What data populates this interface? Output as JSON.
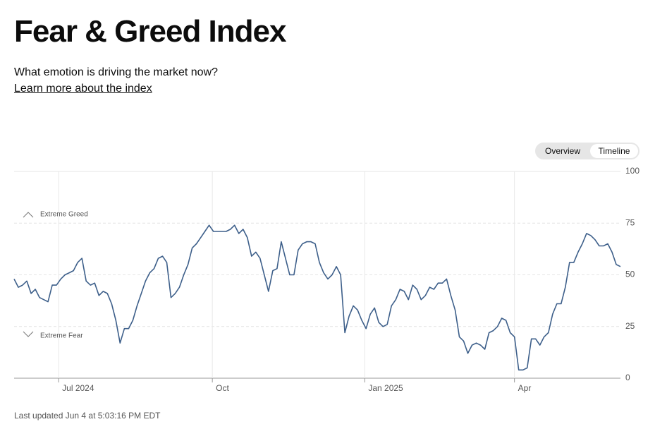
{
  "header": {
    "title": "Fear & Greed Index",
    "subtitle": "What emotion is driving the market now?",
    "link": "Learn more about the index"
  },
  "toggle": [
    "Overview",
    "Timeline"
  ],
  "footer": "Last updated Jun 4 at 5:03:16 PM EDT",
  "chart_data": {
    "type": "line",
    "color": "#3d5f8a",
    "annotations": [
      "Extreme Greed",
      "Extreme Fear"
    ],
    "values": [
      48,
      44,
      45,
      47,
      41,
      43,
      39,
      38,
      37,
      45,
      45,
      48,
      50,
      51,
      52,
      56,
      58,
      47,
      45,
      46,
      40,
      42,
      41,
      36,
      28,
      17,
      24,
      24,
      28,
      35,
      41,
      47,
      51,
      53,
      58,
      59,
      56,
      39,
      41,
      44,
      50,
      55,
      63,
      65,
      68,
      71,
      74,
      71,
      71,
      71,
      71,
      72,
      74,
      70,
      72,
      68,
      59,
      61,
      58,
      50,
      42,
      52,
      53,
      66,
      58,
      50,
      50,
      62,
      65,
      66,
      66,
      65,
      56,
      51,
      48,
      50,
      54,
      50,
      22,
      30,
      35,
      33,
      28,
      24,
      31,
      34,
      27,
      25,
      26,
      35,
      38,
      43,
      42,
      38,
      45,
      43,
      38,
      40,
      44,
      43,
      46,
      46,
      48,
      40,
      33,
      20,
      18,
      12,
      16,
      17,
      16,
      14,
      22,
      23,
      25,
      29,
      28,
      22,
      20,
      4,
      4,
      5,
      19,
      19,
      16,
      20,
      22,
      31,
      36,
      36,
      44,
      56,
      56,
      61,
      65,
      70,
      69,
      67,
      64,
      64,
      65,
      61,
      55,
      54
    ],
    "xlim": [
      0,
      143
    ],
    "xticks": [
      {
        "value": 10.5,
        "label": "Jul 2024"
      },
      {
        "value": 46.75,
        "label": "Oct"
      },
      {
        "value": 82.7,
        "label": "Jan 2025"
      },
      {
        "value": 118,
        "label": "Apr"
      }
    ],
    "ylim": [
      0,
      100
    ],
    "yticks": [
      0,
      25,
      50,
      75,
      100
    ],
    "grid": true
  }
}
